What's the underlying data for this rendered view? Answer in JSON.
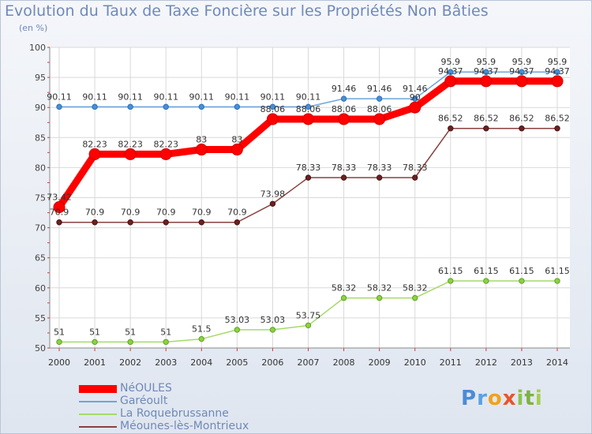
{
  "header": {
    "title": "Evolution du Taux de Taxe Foncière sur les Propriétés Non Bâties",
    "subtitle": "(en %)"
  },
  "logo": {
    "text": "Proxiti"
  },
  "chart_data": {
    "type": "line",
    "title": "Evolution du Taux de Taxe Foncière sur les Propriétés Non Bâties",
    "ylabel": "(en %)",
    "xlabel": "",
    "ylim": [
      50,
      100
    ],
    "yticks": [
      50,
      55,
      60,
      65,
      70,
      75,
      80,
      85,
      90,
      95,
      100
    ],
    "grid": true,
    "categories": [
      "2000",
      "2001",
      "2002",
      "2003",
      "2004",
      "2005",
      "2006",
      "2007",
      "2008",
      "2009",
      "2010",
      "2011",
      "2012",
      "2013",
      "2014"
    ],
    "series": [
      {
        "name": "NéOULES",
        "color": "#ff0000",
        "values": [
          73.42,
          82.23,
          82.23,
          82.23,
          83,
          83,
          88.06,
          88.06,
          88.06,
          88.06,
          90,
          94.37,
          94.37,
          94.37,
          94.37
        ],
        "labels": [
          "73.42",
          "82.23",
          "82.23",
          "82.23",
          "83",
          "83",
          "88.06",
          "88.06",
          "88.06",
          "88.06",
          "90",
          "94.37",
          "94.37",
          "94.37",
          "94.37"
        ]
      },
      {
        "name": "Garéoult",
        "color": "#6fa4dc",
        "values": [
          90.11,
          90.11,
          90.11,
          90.11,
          90.11,
          90.11,
          90.11,
          90.11,
          91.46,
          91.46,
          91.46,
          95.9,
          95.9,
          95.9,
          95.9
        ],
        "labels": [
          "90.11",
          "90.11",
          "90.11",
          "90.11",
          "90.11",
          "90.11",
          "90.11",
          "90.11",
          "91.46",
          "91.46",
          "91.46",
          "95.9",
          "95.9",
          "95.9",
          "95.9"
        ]
      },
      {
        "name": "La Roquebrussanne",
        "color": "#a6d96a",
        "values": [
          51,
          51,
          51,
          51,
          51.5,
          53.03,
          53.03,
          53.75,
          58.32,
          58.32,
          58.32,
          61.15,
          61.15,
          61.15,
          61.15
        ],
        "labels": [
          "51",
          "51",
          "51",
          "51",
          "51.5",
          "53.03",
          "53.03",
          "53.75",
          "58.32",
          "58.32",
          "58.32",
          "61.15",
          "61.15",
          "61.15",
          "61.15"
        ]
      },
      {
        "name": "Méounes-lès-Montrieux",
        "color": "#8b4040",
        "values": [
          70.9,
          70.9,
          70.9,
          70.9,
          70.9,
          70.9,
          73.98,
          78.33,
          78.33,
          78.33,
          78.33,
          86.52,
          86.52,
          86.52,
          86.52
        ],
        "labels": [
          "70.9",
          "70.9",
          "70.9",
          "70.9",
          "70.9",
          "70.9",
          "73.98",
          "78.33",
          "78.33",
          "78.33",
          "78.33",
          "86.52",
          "86.52",
          "86.52",
          "86.52"
        ]
      }
    ]
  }
}
